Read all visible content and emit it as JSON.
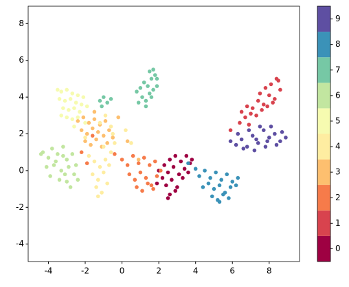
{
  "chart_data": {
    "type": "scatter",
    "xlim": [
      -5.1,
      9.65
    ],
    "ylim": [
      -4.95,
      8.95
    ],
    "xticks": [
      -4,
      -2,
      0,
      2,
      4,
      6,
      8
    ],
    "yticks": [
      -4,
      -2,
      0,
      2,
      4,
      6,
      8
    ],
    "colorbar": {
      "lim": [
        -0.5,
        9.5
      ],
      "ticks": [
        0,
        1,
        2,
        3,
        4,
        5,
        6,
        7,
        8,
        9
      ]
    },
    "series": [
      {
        "color": "#9e0142",
        "x": [
          2.0,
          2.3,
          2.6,
          2.9,
          3.2,
          3.5,
          3.8,
          2.2,
          2.5,
          2.8,
          3.1,
          3.4,
          3.7,
          2.4,
          2.7,
          3.0,
          3.3,
          2.6,
          2.9,
          1.9,
          3.6,
          2.5
        ],
        "y": [
          0.0,
          0.3,
          0.6,
          0.8,
          0.5,
          0.8,
          0.6,
          -0.4,
          -0.1,
          0.2,
          -0.2,
          0.1,
          0.4,
          -0.8,
          -0.5,
          -0.9,
          -0.4,
          -1.3,
          -1.1,
          -0.7,
          -0.1,
          -1.5
        ]
      },
      {
        "color": "#d8434e",
        "x": [
          6.5,
          6.8,
          7.1,
          7.4,
          7.7,
          8.0,
          8.3,
          8.6,
          6.7,
          7.0,
          7.3,
          7.6,
          7.9,
          8.2,
          8.5,
          7.5,
          7.8,
          8.1,
          8.4,
          6.4,
          5.9,
          6.9
        ],
        "y": [
          3.2,
          3.5,
          3.4,
          3.8,
          3.6,
          4.1,
          3.9,
          4.4,
          2.9,
          3.1,
          3.0,
          3.3,
          3.5,
          3.7,
          4.9,
          4.2,
          4.5,
          4.7,
          5.0,
          2.6,
          2.2,
          2.5
        ]
      },
      {
        "color": "#f67b4a",
        "x": [
          0.0,
          0.3,
          0.6,
          0.9,
          1.2,
          1.5,
          1.8,
          2.1,
          0.4,
          0.7,
          1.0,
          1.3,
          1.6,
          1.9,
          0.8,
          1.1,
          1.4,
          1.7,
          -2.2,
          -1.9,
          -0.4,
          -1.6
        ],
        "y": [
          0.6,
          0.3,
          0.8,
          0.4,
          0.7,
          0.3,
          0.5,
          0.0,
          -0.2,
          -0.5,
          -0.1,
          -0.4,
          -0.8,
          -0.3,
          -0.9,
          -1.1,
          -0.7,
          -1.0,
          1.0,
          0.4,
          0.9,
          1.9
        ]
      },
      {
        "color": "#fdbf6f",
        "x": [
          -2.4,
          -2.1,
          -1.8,
          -1.5,
          -1.2,
          -0.9,
          -2.2,
          -1.9,
          -1.6,
          -1.3,
          -1.0,
          -0.7,
          -2.0,
          -1.7,
          -1.4,
          -1.1,
          -0.8,
          -0.5,
          -1.5,
          -0.2,
          0.3,
          0.9
        ],
        "y": [
          2.7,
          2.9,
          2.6,
          2.8,
          2.5,
          2.7,
          2.2,
          2.0,
          2.3,
          2.1,
          1.9,
          2.2,
          1.6,
          1.4,
          1.7,
          1.3,
          1.5,
          1.8,
          3.2,
          2.9,
          1.6,
          0.6
        ]
      },
      {
        "color": "#feeda1",
        "x": [
          -1.8,
          -1.5,
          -1.2,
          -0.9,
          -0.6,
          -1.6,
          -1.3,
          -1.0,
          -0.7,
          -0.4,
          -1.4,
          -1.1,
          -0.8,
          -0.5,
          -1.2,
          -0.9,
          -1.3,
          -1.0,
          -0.6,
          0.2,
          0.5,
          -2.0
        ],
        "y": [
          0.8,
          0.5,
          0.2,
          0.6,
          1.0,
          -0.2,
          -0.5,
          -0.1,
          0.3,
          1.5,
          -0.9,
          -1.2,
          -0.7,
          2.0,
          2.6,
          3.0,
          -1.4,
          1.3,
          2.4,
          2.2,
          1.5,
          1.8
        ]
      },
      {
        "color": "#f6fbb0",
        "x": [
          -3.5,
          -3.3,
          -3.0,
          -2.7,
          -2.4,
          -2.1,
          -3.4,
          -3.1,
          -2.8,
          -2.5,
          -2.2,
          -3.2,
          -2.9,
          -2.6,
          -2.3,
          -3.0,
          -2.7,
          -2.4,
          -1.9,
          -3.3,
          -2.0,
          -2.6
        ],
        "y": [
          4.4,
          4.3,
          4.4,
          4.2,
          4.1,
          4.0,
          3.9,
          3.8,
          3.9,
          3.7,
          3.6,
          3.4,
          3.3,
          3.4,
          3.2,
          2.9,
          2.8,
          2.9,
          3.5,
          3.0,
          2.6,
          2.4
        ]
      },
      {
        "color": "#c2e6a0",
        "x": [
          -4.3,
          -4.0,
          -3.8,
          -3.5,
          -3.2,
          -3.0,
          -2.7,
          -2.5,
          -4.1,
          -3.7,
          -3.3,
          -2.9,
          -2.6,
          -3.9,
          -3.4,
          -3.0,
          -2.8,
          -3.6,
          -3.2,
          -2.4,
          -4.4,
          -3.1
        ],
        "y": [
          1.0,
          0.7,
          1.2,
          0.9,
          1.3,
          0.6,
          0.9,
          0.3,
          0.2,
          0.3,
          0.0,
          0.2,
          -0.2,
          -0.3,
          -0.5,
          -0.6,
          -0.9,
          0.5,
          0.8,
          -0.5,
          0.9,
          -0.2
        ]
      },
      {
        "color": "#76c8a5",
        "x": [
          0.9,
          1.1,
          1.3,
          1.5,
          1.7,
          1.9,
          1.0,
          1.2,
          1.4,
          1.6,
          1.8,
          1.5,
          1.7,
          1.9,
          1.6,
          0.8,
          1.3,
          -1.2,
          -1.0,
          -0.8,
          -0.6,
          -1.1
        ],
        "y": [
          3.7,
          4.0,
          3.8,
          4.2,
          4.4,
          4.6,
          4.5,
          4.8,
          4.6,
          5.0,
          5.2,
          5.4,
          5.5,
          5.0,
          4.0,
          4.3,
          3.5,
          3.8,
          4.0,
          3.7,
          3.9,
          3.5
        ]
      },
      {
        "color": "#3b92b8",
        "x": [
          4.2,
          4.5,
          4.8,
          5.1,
          5.4,
          5.7,
          6.0,
          6.3,
          4.4,
          4.7,
          5.0,
          5.3,
          5.6,
          5.9,
          6.2,
          4.9,
          5.2,
          5.5,
          5.8,
          5.3,
          3.6,
          4.0
        ],
        "y": [
          -0.3,
          0.0,
          -0.4,
          -0.1,
          -0.5,
          -0.2,
          -0.6,
          -0.4,
          -0.9,
          -0.7,
          -1.0,
          -0.8,
          -1.2,
          -0.9,
          -0.8,
          -1.4,
          -1.6,
          -1.3,
          -1.5,
          -1.7,
          0.4,
          0.1
        ]
      },
      {
        "color": "#5e4fa2",
        "x": [
          5.9,
          6.2,
          6.5,
          6.8,
          7.1,
          7.4,
          7.7,
          8.0,
          8.3,
          8.6,
          8.9,
          6.3,
          6.6,
          6.9,
          7.2,
          7.5,
          7.8,
          8.1,
          8.4,
          8.7,
          7.3,
          7.9
        ],
        "y": [
          1.6,
          1.4,
          1.7,
          1.3,
          1.9,
          1.5,
          2.2,
          1.8,
          2.0,
          1.6,
          1.8,
          2.0,
          1.2,
          2.2,
          1.1,
          2.4,
          1.3,
          2.4,
          1.4,
          2.1,
          1.7,
          1.6
        ]
      }
    ]
  }
}
